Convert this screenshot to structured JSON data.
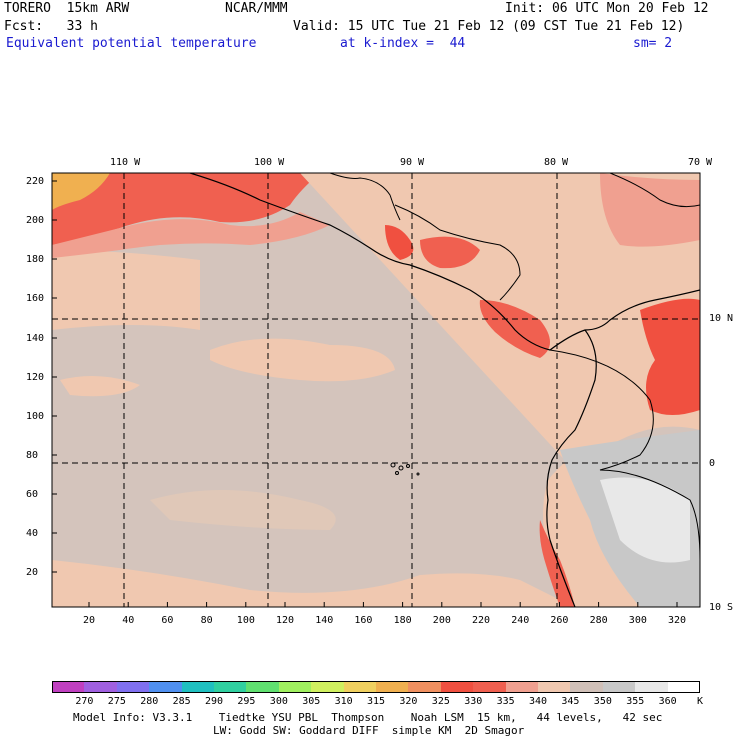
{
  "header": {
    "model_name": "TORERO  15km ARW",
    "org": "NCAR/MMM",
    "init": "Init: 06 UTC Mon 20 Feb 12",
    "forecast": "Fcst:   33 h",
    "valid": "Valid: 15 UTC Tue 21 Feb 12 (09 CST Tue 21 Feb 12)",
    "field": "Equivalent potential temperature",
    "level": "at k-index =  44",
    "smoothing": "sm= 2"
  },
  "axes": {
    "top_labels": [
      "110 W",
      "100 W",
      "90 W",
      "80 W",
      "70 W"
    ],
    "right_labels": [
      "10 N",
      "0",
      "10 S"
    ],
    "left_ticks": [
      "220",
      "200",
      "180",
      "160",
      "140",
      "120",
      "100",
      "80",
      "60",
      "40",
      "20"
    ],
    "bottom_ticks": [
      "20",
      "40",
      "60",
      "80",
      "100",
      "120",
      "140",
      "160",
      "180",
      "200",
      "220",
      "240",
      "260",
      "280",
      "300",
      "320"
    ]
  },
  "colorbar": {
    "unit": "K",
    "labels": [
      "270",
      "275",
      "280",
      "285",
      "290",
      "295",
      "300",
      "305",
      "310",
      "315",
      "320",
      "325",
      "330",
      "335",
      "340",
      "345",
      "350",
      "355",
      "360"
    ],
    "colors": [
      "#c040c0",
      "#a060e0",
      "#8070f0",
      "#5090f0",
      "#20c0c0",
      "#30d0a0",
      "#60e070",
      "#a0f060",
      "#d0f060",
      "#f0d060",
      "#f0b050",
      "#f09060",
      "#f05040",
      "#f06050",
      "#f0a090",
      "#f0c8b0",
      "#d0c0b8",
      "#c8c8c8",
      "#e8e8e8",
      "#ffffff"
    ]
  },
  "footer": {
    "line1": "Model Info: V3.3.1    Tiedtke YSU PBL  Thompson    Noah LSM  15 km,   44 levels,   42 sec",
    "line2": "LW: Godd SW: Goddard DIFF  simple KM  2D Smagor"
  }
}
